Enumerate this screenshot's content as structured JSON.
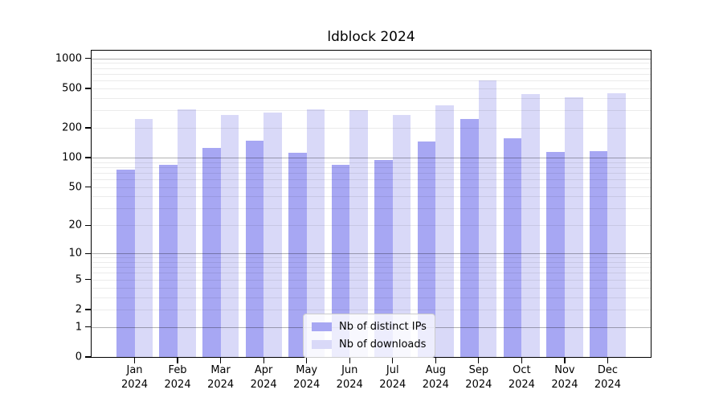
{
  "title": "ldblock 2024",
  "chart_data": {
    "type": "bar",
    "title": "ldblock 2024",
    "xlabel": "",
    "ylabel": "",
    "categories": [
      "Jan 2024",
      "Feb 2024",
      "Mar 2024",
      "Apr 2024",
      "May 2024",
      "Jun 2024",
      "Jul 2024",
      "Aug 2024",
      "Sep 2024",
      "Oct 2024",
      "Nov 2024",
      "Dec 2024"
    ],
    "series": [
      {
        "name": "Nb of distinct IPs",
        "color": "#a7a7f3",
        "values": [
          75,
          85,
          125,
          147,
          113,
          84,
          95,
          146,
          247,
          158,
          115,
          117
        ]
      },
      {
        "name": "Nb of downloads",
        "color": "#d9d9f8",
        "values": [
          244,
          310,
          270,
          287,
          305,
          304,
          268,
          340,
          604,
          440,
          410,
          448
        ]
      }
    ],
    "yscale": "log1p",
    "ylim": [
      0,
      1200
    ],
    "yticks": [
      0,
      1,
      2,
      5,
      10,
      20,
      50,
      100,
      200,
      500,
      1000
    ],
    "grid": "horizontal, major and minor log lines, drawn over bars",
    "legend_position": "lower center inside plot"
  },
  "colors": {
    "background": "#ffffff",
    "axis": "#000000",
    "grid_major": "rgba(0,0,0,0.30)",
    "grid_minor": "rgba(0,0,0,0.08)",
    "legend_border": "#cccccc"
  }
}
